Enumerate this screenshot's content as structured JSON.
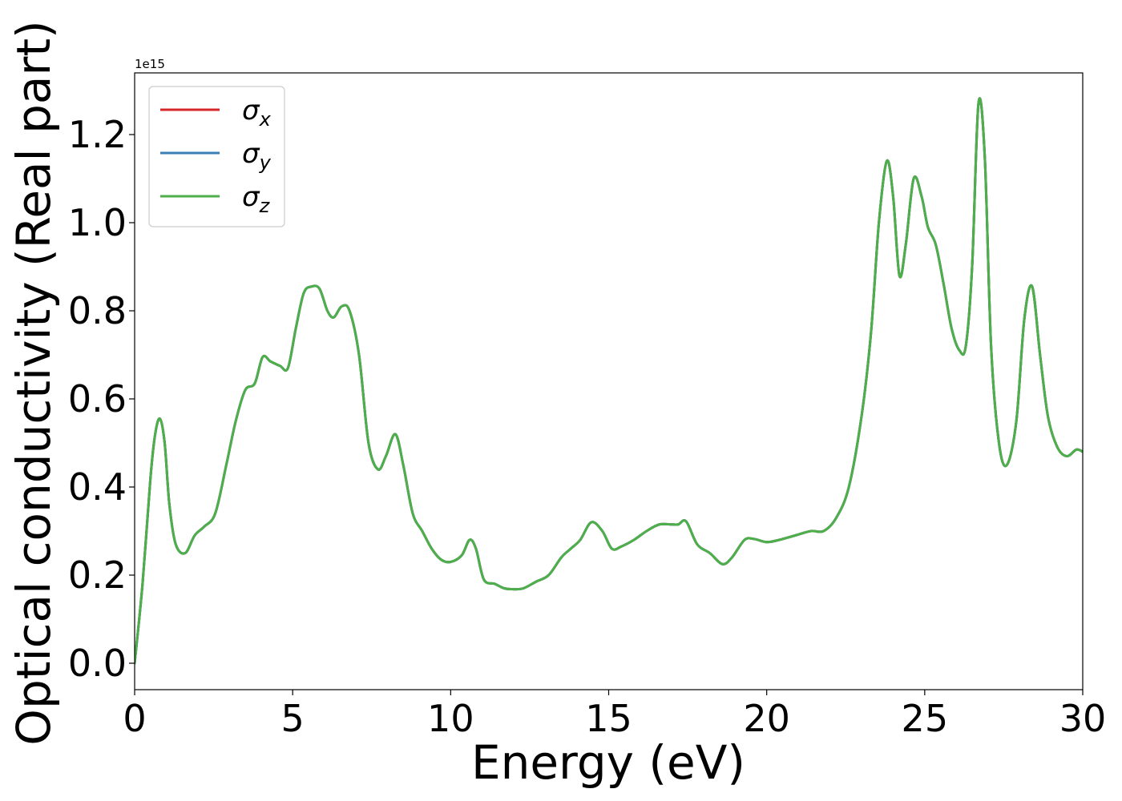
{
  "chart_data": {
    "type": "line",
    "xlabel": "Energy (eV)",
    "ylabel": "Optical conductivity (Real part)",
    "y_offset_text": "1e15",
    "xlim": [
      0,
      30
    ],
    "ylim": [
      -0.06,
      1.34
    ],
    "x_ticks": [
      0,
      5,
      10,
      15,
      20,
      25,
      30
    ],
    "x_tick_labels": [
      "0",
      "5",
      "10",
      "15",
      "20",
      "25",
      "30"
    ],
    "y_ticks": [
      0.0,
      0.2,
      0.4,
      0.6,
      0.8,
      1.0,
      1.2
    ],
    "y_tick_labels": [
      "0.0",
      "0.2",
      "0.4",
      "0.6",
      "0.8",
      "1.0",
      "1.2"
    ],
    "grid": false,
    "legend_position": "top-left",
    "series": [
      {
        "name": "σx",
        "legend_symbol": "σ",
        "legend_subscript": "x",
        "color": "#d62728",
        "x": [
          0,
          0.25,
          0.5,
          0.65,
          0.8,
          0.95,
          1.1,
          1.3,
          1.6,
          1.9,
          2.2,
          2.55,
          2.9,
          3.2,
          3.5,
          3.8,
          4.05,
          4.3,
          4.6,
          4.85,
          5.1,
          5.35,
          5.6,
          5.85,
          6.1,
          6.3,
          6.55,
          6.8,
          7.1,
          7.4,
          7.7,
          7.95,
          8.25,
          8.5,
          8.8,
          9.1,
          9.4,
          9.7,
          10.0,
          10.35,
          10.6,
          10.8,
          11.05,
          11.4,
          11.7,
          12.0,
          12.3,
          12.7,
          13.1,
          13.5,
          13.8,
          14.1,
          14.45,
          14.8,
          15.1,
          15.4,
          15.8,
          16.2,
          16.6,
          17.0,
          17.2,
          17.45,
          17.8,
          18.2,
          18.6,
          18.9,
          19.3,
          19.6,
          20.0,
          20.4,
          20.9,
          21.4,
          21.8,
          22.2,
          22.6,
          23.0,
          23.3,
          23.55,
          23.8,
          24.0,
          24.2,
          24.4,
          24.65,
          24.9,
          25.1,
          25.35,
          25.6,
          25.85,
          26.1,
          26.3,
          26.5,
          26.7,
          26.9,
          27.1,
          27.35,
          27.6,
          27.9,
          28.15,
          28.4,
          28.65,
          28.9,
          29.2,
          29.5,
          29.8,
          30.0
        ],
        "values": [
          0.0,
          0.18,
          0.42,
          0.52,
          0.555,
          0.5,
          0.36,
          0.27,
          0.25,
          0.29,
          0.31,
          0.34,
          0.45,
          0.55,
          0.62,
          0.635,
          0.695,
          0.685,
          0.675,
          0.67,
          0.76,
          0.84,
          0.855,
          0.85,
          0.8,
          0.785,
          0.81,
          0.8,
          0.7,
          0.5,
          0.44,
          0.47,
          0.52,
          0.45,
          0.34,
          0.3,
          0.26,
          0.235,
          0.23,
          0.245,
          0.28,
          0.26,
          0.19,
          0.18,
          0.17,
          0.168,
          0.17,
          0.185,
          0.2,
          0.24,
          0.26,
          0.28,
          0.32,
          0.3,
          0.26,
          0.265,
          0.28,
          0.3,
          0.315,
          0.315,
          0.315,
          0.322,
          0.27,
          0.25,
          0.225,
          0.24,
          0.28,
          0.282,
          0.275,
          0.28,
          0.29,
          0.3,
          0.3,
          0.33,
          0.4,
          0.56,
          0.75,
          1.0,
          1.14,
          1.06,
          0.88,
          0.95,
          1.1,
          1.06,
          0.99,
          0.95,
          0.86,
          0.76,
          0.71,
          0.72,
          0.9,
          1.27,
          1.15,
          0.72,
          0.5,
          0.45,
          0.55,
          0.78,
          0.855,
          0.7,
          0.56,
          0.49,
          0.47,
          0.485,
          0.48
        ]
      },
      {
        "name": "σy",
        "legend_symbol": "σ",
        "legend_subscript": "y",
        "color": "#3a7fb5",
        "x": [
          0,
          0.25,
          0.5,
          0.65,
          0.8,
          0.95,
          1.1,
          1.3,
          1.6,
          1.9,
          2.2,
          2.55,
          2.9,
          3.2,
          3.5,
          3.8,
          4.05,
          4.3,
          4.6,
          4.85,
          5.1,
          5.35,
          5.6,
          5.85,
          6.1,
          6.3,
          6.55,
          6.8,
          7.1,
          7.4,
          7.7,
          7.95,
          8.25,
          8.5,
          8.8,
          9.1,
          9.4,
          9.7,
          10.0,
          10.35,
          10.6,
          10.8,
          11.05,
          11.4,
          11.7,
          12.0,
          12.3,
          12.7,
          13.1,
          13.5,
          13.8,
          14.1,
          14.45,
          14.8,
          15.1,
          15.4,
          15.8,
          16.2,
          16.6,
          17.0,
          17.2,
          17.45,
          17.8,
          18.2,
          18.6,
          18.9,
          19.3,
          19.6,
          20.0,
          20.4,
          20.9,
          21.4,
          21.8,
          22.2,
          22.6,
          23.0,
          23.3,
          23.55,
          23.8,
          24.0,
          24.2,
          24.4,
          24.65,
          24.9,
          25.1,
          25.35,
          25.6,
          25.85,
          26.1,
          26.3,
          26.5,
          26.7,
          26.9,
          27.1,
          27.35,
          27.6,
          27.9,
          28.15,
          28.4,
          28.65,
          28.9,
          29.2,
          29.5,
          29.8,
          30.0
        ],
        "values": [
          0.0,
          0.18,
          0.42,
          0.52,
          0.555,
          0.5,
          0.36,
          0.27,
          0.25,
          0.29,
          0.31,
          0.34,
          0.45,
          0.55,
          0.62,
          0.635,
          0.695,
          0.685,
          0.675,
          0.67,
          0.76,
          0.84,
          0.855,
          0.85,
          0.8,
          0.785,
          0.81,
          0.8,
          0.7,
          0.5,
          0.44,
          0.47,
          0.52,
          0.45,
          0.34,
          0.3,
          0.26,
          0.235,
          0.23,
          0.245,
          0.28,
          0.26,
          0.19,
          0.18,
          0.17,
          0.168,
          0.17,
          0.185,
          0.2,
          0.24,
          0.26,
          0.28,
          0.32,
          0.3,
          0.26,
          0.265,
          0.28,
          0.3,
          0.315,
          0.315,
          0.315,
          0.322,
          0.27,
          0.25,
          0.225,
          0.24,
          0.28,
          0.282,
          0.275,
          0.28,
          0.29,
          0.3,
          0.3,
          0.33,
          0.4,
          0.56,
          0.75,
          1.0,
          1.14,
          1.06,
          0.88,
          0.95,
          1.1,
          1.06,
          0.99,
          0.95,
          0.86,
          0.76,
          0.71,
          0.72,
          0.9,
          1.27,
          1.15,
          0.72,
          0.5,
          0.45,
          0.55,
          0.78,
          0.855,
          0.7,
          0.56,
          0.49,
          0.47,
          0.485,
          0.48
        ]
      },
      {
        "name": "σz",
        "legend_symbol": "σ",
        "legend_subscript": "z",
        "color": "#4daf4a",
        "x": [
          0,
          0.25,
          0.5,
          0.65,
          0.8,
          0.95,
          1.1,
          1.3,
          1.6,
          1.9,
          2.2,
          2.55,
          2.9,
          3.2,
          3.5,
          3.8,
          4.05,
          4.3,
          4.6,
          4.85,
          5.1,
          5.35,
          5.6,
          5.85,
          6.1,
          6.3,
          6.55,
          6.8,
          7.1,
          7.4,
          7.7,
          7.95,
          8.25,
          8.5,
          8.8,
          9.1,
          9.4,
          9.7,
          10.0,
          10.35,
          10.6,
          10.8,
          11.05,
          11.4,
          11.7,
          12.0,
          12.3,
          12.7,
          13.1,
          13.5,
          13.8,
          14.1,
          14.45,
          14.8,
          15.1,
          15.4,
          15.8,
          16.2,
          16.6,
          17.0,
          17.2,
          17.45,
          17.8,
          18.2,
          18.6,
          18.9,
          19.3,
          19.6,
          20.0,
          20.4,
          20.9,
          21.4,
          21.8,
          22.2,
          22.6,
          23.0,
          23.3,
          23.55,
          23.8,
          24.0,
          24.2,
          24.4,
          24.65,
          24.9,
          25.1,
          25.35,
          25.6,
          25.85,
          26.1,
          26.3,
          26.5,
          26.7,
          26.9,
          27.1,
          27.35,
          27.6,
          27.9,
          28.15,
          28.4,
          28.65,
          28.9,
          29.2,
          29.5,
          29.8,
          30.0
        ],
        "values": [
          0.0,
          0.18,
          0.42,
          0.52,
          0.555,
          0.5,
          0.36,
          0.27,
          0.25,
          0.29,
          0.31,
          0.34,
          0.45,
          0.55,
          0.62,
          0.635,
          0.695,
          0.685,
          0.675,
          0.67,
          0.76,
          0.84,
          0.855,
          0.85,
          0.8,
          0.785,
          0.81,
          0.8,
          0.7,
          0.5,
          0.44,
          0.47,
          0.52,
          0.45,
          0.34,
          0.3,
          0.26,
          0.235,
          0.23,
          0.245,
          0.28,
          0.26,
          0.19,
          0.18,
          0.17,
          0.168,
          0.17,
          0.185,
          0.2,
          0.24,
          0.26,
          0.28,
          0.32,
          0.3,
          0.26,
          0.265,
          0.28,
          0.3,
          0.315,
          0.315,
          0.315,
          0.322,
          0.27,
          0.25,
          0.225,
          0.24,
          0.28,
          0.282,
          0.275,
          0.28,
          0.29,
          0.3,
          0.3,
          0.33,
          0.4,
          0.56,
          0.75,
          1.0,
          1.14,
          1.06,
          0.88,
          0.95,
          1.1,
          1.06,
          0.99,
          0.95,
          0.86,
          0.76,
          0.71,
          0.72,
          0.9,
          1.27,
          1.15,
          0.72,
          0.5,
          0.45,
          0.55,
          0.78,
          0.855,
          0.7,
          0.56,
          0.49,
          0.47,
          0.485,
          0.48
        ]
      }
    ]
  }
}
